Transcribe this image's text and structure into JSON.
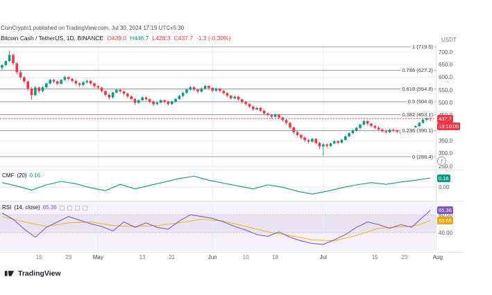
{
  "header": {
    "attribution": "CoinCrypto1 published on TradingView.com, Jul 30, 2024 17:19 UTC+5:30",
    "symbol": "Bitcoin Cash / TetherUS, 1D, BINANCE",
    "ohlc": {
      "o": "O439.0",
      "h": "H446.7",
      "l": "L428.3",
      "c": "C437.7",
      "change": "-1.3 (-0.30%)"
    },
    "quote_currency": "USDT"
  },
  "footer": {
    "brand": "TradingView"
  },
  "chart_data": {
    "type": "candlestick",
    "symbol": "Bitcoin Cash / TetherUS",
    "interval": "1D",
    "exchange": "BINANCE",
    "colors": {
      "up": "#089981",
      "down": "#f23645"
    },
    "fib_icon": "f",
    "price_axis": {
      "visible_range": [
        245,
        730
      ],
      "ticks": [
        700,
        650,
        600,
        550,
        500,
        450,
        400,
        350,
        300,
        250
      ]
    },
    "fib_levels": [
      {
        "label": "1 (719.5)",
        "value": 719.5
      },
      {
        "label": "0.786 (627.2)",
        "value": 627.2
      },
      {
        "label": "0.618 (554.8)",
        "value": 554.8
      },
      {
        "label": "0.5 (504.0)",
        "value": 504.0
      },
      {
        "label": "0.382 (453.1)",
        "value": 453.1
      },
      {
        "label": "0.236 (390.1)",
        "value": 390.1
      },
      {
        "label": "0 (288.4)",
        "value": 288.4
      }
    ],
    "last_price": {
      "value": 437.7,
      "label": "437.7",
      "countdown": "13:10:06"
    },
    "time_axis": [
      {
        "label": "15",
        "day": 10
      },
      {
        "label": "23",
        "day": 18
      },
      {
        "label": "May",
        "day": 26,
        "major": true
      },
      {
        "label": "13",
        "day": 38
      },
      {
        "label": "21",
        "day": 46
      },
      {
        "label": "Jun",
        "day": 57,
        "major": true
      },
      {
        "label": "10",
        "day": 66
      },
      {
        "label": "18",
        "day": 74
      },
      {
        "label": "Jul",
        "day": 87,
        "major": true
      },
      {
        "label": "15",
        "day": 101
      },
      {
        "label": "23",
        "day": 109
      },
      {
        "label": "Aug",
        "day": 118,
        "major": true
      }
    ],
    "candles": [
      [
        638,
        652,
        630,
        648
      ],
      [
        648,
        668,
        644,
        664
      ],
      [
        664,
        705,
        660,
        688
      ],
      [
        688,
        695,
        648,
        655
      ],
      [
        655,
        660,
        612,
        620
      ],
      [
        620,
        628,
        592,
        600
      ],
      [
        600,
        606,
        576,
        584
      ],
      [
        584,
        588,
        546,
        556
      ],
      [
        556,
        562,
        512,
        530
      ],
      [
        530,
        566,
        526,
        560
      ],
      [
        560,
        564,
        538,
        546
      ],
      [
        546,
        566,
        542,
        561
      ],
      [
        561,
        580,
        556,
        576
      ],
      [
        576,
        596,
        572,
        590
      ],
      [
        590,
        594,
        576,
        584
      ],
      [
        584,
        589,
        568,
        575
      ],
      [
        575,
        594,
        572,
        590
      ],
      [
        590,
        606,
        586,
        601
      ],
      [
        601,
        605,
        588,
        594
      ],
      [
        594,
        598,
        580,
        586
      ],
      [
        586,
        590,
        570,
        576
      ],
      [
        576,
        581,
        562,
        570
      ],
      [
        570,
        585,
        566,
        581
      ],
      [
        581,
        590,
        576,
        586
      ],
      [
        586,
        589,
        570,
        576
      ],
      [
        576,
        580,
        558,
        565
      ],
      [
        565,
        570,
        552,
        560
      ],
      [
        560,
        563,
        540,
        546
      ],
      [
        546,
        550,
        524,
        531
      ],
      [
        531,
        536,
        512,
        521
      ],
      [
        521,
        544,
        517,
        540
      ],
      [
        540,
        556,
        536,
        551
      ],
      [
        551,
        555,
        538,
        545
      ],
      [
        545,
        549,
        530,
        536
      ],
      [
        536,
        540,
        518,
        525
      ],
      [
        525,
        529,
        508,
        515
      ],
      [
        515,
        519,
        492,
        500
      ],
      [
        500,
        514,
        496,
        510
      ],
      [
        510,
        526,
        506,
        521
      ],
      [
        521,
        525,
        508,
        514
      ],
      [
        514,
        518,
        498,
        505
      ],
      [
        505,
        509,
        488,
        495
      ],
      [
        495,
        505,
        490,
        501
      ],
      [
        501,
        514,
        497,
        510
      ],
      [
        510,
        513,
        498,
        504
      ],
      [
        504,
        508,
        489,
        495
      ],
      [
        495,
        509,
        491,
        505
      ],
      [
        505,
        519,
        501,
        515
      ],
      [
        515,
        531,
        511,
        527
      ],
      [
        527,
        543,
        523,
        539
      ],
      [
        539,
        556,
        535,
        552
      ],
      [
        552,
        566,
        548,
        561
      ],
      [
        561,
        565,
        546,
        552
      ],
      [
        552,
        556,
        538,
        544
      ],
      [
        544,
        560,
        540,
        556
      ],
      [
        556,
        571,
        552,
        566
      ],
      [
        566,
        569,
        552,
        558
      ],
      [
        558,
        562,
        542,
        548
      ],
      [
        548,
        560,
        544,
        556
      ],
      [
        556,
        559,
        541,
        547
      ],
      [
        547,
        551,
        532,
        538
      ],
      [
        538,
        542,
        522,
        528
      ],
      [
        528,
        532,
        512,
        518
      ],
      [
        518,
        528,
        514,
        524
      ],
      [
        524,
        527,
        508,
        513
      ],
      [
        513,
        517,
        497,
        503
      ],
      [
        503,
        507,
        489,
        495
      ],
      [
        495,
        499,
        479,
        485
      ],
      [
        485,
        489,
        467,
        474
      ],
      [
        474,
        484,
        470,
        480
      ],
      [
        480,
        483,
        463,
        469
      ],
      [
        469,
        473,
        452,
        458
      ],
      [
        458,
        462,
        445,
        452
      ],
      [
        452,
        456,
        438,
        445
      ],
      [
        445,
        458,
        441,
        454
      ],
      [
        454,
        457,
        436,
        442
      ],
      [
        442,
        446,
        425,
        432
      ],
      [
        432,
        436,
        414,
        421
      ],
      [
        421,
        425,
        396,
        403
      ],
      [
        403,
        407,
        377,
        384
      ],
      [
        384,
        390,
        366,
        373
      ],
      [
        373,
        378,
        356,
        363
      ],
      [
        363,
        367,
        346,
        353
      ],
      [
        353,
        359,
        339,
        347
      ],
      [
        347,
        362,
        343,
        358
      ],
      [
        358,
        361,
        336,
        342
      ],
      [
        342,
        346,
        318,
        328
      ],
      [
        328,
        341,
        292,
        336
      ],
      [
        336,
        340,
        322,
        330
      ],
      [
        330,
        344,
        326,
        340
      ],
      [
        340,
        353,
        336,
        349
      ],
      [
        349,
        352,
        336,
        343
      ],
      [
        343,
        358,
        339,
        354
      ],
      [
        354,
        372,
        350,
        368
      ],
      [
        368,
        384,
        364,
        380
      ],
      [
        380,
        395,
        376,
        391
      ],
      [
        391,
        405,
        387,
        401
      ],
      [
        401,
        418,
        397,
        414
      ],
      [
        414,
        432,
        410,
        428
      ],
      [
        428,
        431,
        412,
        418
      ],
      [
        418,
        421,
        403,
        409
      ],
      [
        409,
        413,
        396,
        402
      ],
      [
        402,
        408,
        389,
        395
      ],
      [
        395,
        399,
        382,
        388
      ],
      [
        388,
        393,
        378,
        384
      ],
      [
        384,
        398,
        380,
        394
      ],
      [
        394,
        400,
        385,
        391
      ],
      [
        391,
        396,
        380,
        386
      ],
      [
        386,
        390,
        375,
        381
      ],
      [
        381,
        395,
        377,
        391
      ],
      [
        391,
        394,
        376,
        381
      ],
      [
        381,
        398,
        377,
        394
      ],
      [
        394,
        412,
        390,
        408
      ],
      [
        408,
        425,
        404,
        421
      ],
      [
        421,
        437,
        417,
        433
      ],
      [
        433,
        445,
        427,
        439
      ],
      [
        439,
        446.7,
        428.3,
        437.7
      ]
    ],
    "indicators": {
      "cmf": {
        "name": "CMF",
        "params": "(20)",
        "value": "0.16",
        "color": "#089981",
        "range": [
          -0.2,
          0.28
        ],
        "axis": {
          "badge": "0.16",
          "zero": "0.00"
        },
        "points": [
          [
            0,
            0.08
          ],
          [
            4,
            0.02
          ],
          [
            8,
            -0.05
          ],
          [
            12,
            0.04
          ],
          [
            16,
            0.1
          ],
          [
            20,
            0.06
          ],
          [
            24,
            -0.01
          ],
          [
            28,
            -0.06
          ],
          [
            32,
            0.05
          ],
          [
            36,
            -0.03
          ],
          [
            40,
            0.03
          ],
          [
            44,
            0.09
          ],
          [
            48,
            0.15
          ],
          [
            52,
            0.19
          ],
          [
            56,
            0.12
          ],
          [
            60,
            0.07
          ],
          [
            64,
            0.02
          ],
          [
            68,
            -0.03
          ],
          [
            72,
            0.04
          ],
          [
            76,
            0.0
          ],
          [
            80,
            -0.07
          ],
          [
            84,
            -0.12
          ],
          [
            88,
            -0.07
          ],
          [
            92,
            -0.01
          ],
          [
            96,
            0.04
          ],
          [
            100,
            0.08
          ],
          [
            104,
            0.05
          ],
          [
            108,
            0.09
          ],
          [
            112,
            0.12
          ],
          [
            116,
            0.16
          ]
        ]
      },
      "rsi": {
        "name": "RSI",
        "params": "(14, close)",
        "value": "65.36",
        "line_color": "#7e57c2",
        "ma_color": "#f0b40a",
        "bg": "rgba(126,87,194,0.08)",
        "band": "rgba(126,87,194,0.09)",
        "range": [
          20,
          74
        ],
        "levels": [
          60,
          40
        ],
        "axis": {
          "value_badge": "65.36",
          "upper": "60.00",
          "ma_badge": "53.66",
          "lower": "40.00"
        },
        "points": [
          [
            0,
            62
          ],
          [
            3,
            55
          ],
          [
            6,
            44
          ],
          [
            9,
            35
          ],
          [
            12,
            46
          ],
          [
            15,
            52
          ],
          [
            18,
            58
          ],
          [
            21,
            54
          ],
          [
            24,
            50
          ],
          [
            27,
            47
          ],
          [
            30,
            42
          ],
          [
            33,
            52
          ],
          [
            36,
            46
          ],
          [
            39,
            51
          ],
          [
            42,
            46
          ],
          [
            45,
            44
          ],
          [
            48,
            53
          ],
          [
            51,
            60
          ],
          [
            54,
            58
          ],
          [
            57,
            56
          ],
          [
            60,
            52
          ],
          [
            63,
            47
          ],
          [
            66,
            43
          ],
          [
            69,
            38
          ],
          [
            72,
            36
          ],
          [
            75,
            41
          ],
          [
            78,
            35
          ],
          [
            81,
            31
          ],
          [
            84,
            28
          ],
          [
            87,
            27
          ],
          [
            90,
            32
          ],
          [
            93,
            38
          ],
          [
            96,
            46
          ],
          [
            99,
            52
          ],
          [
            102,
            49
          ],
          [
            105,
            45
          ],
          [
            108,
            49
          ],
          [
            111,
            46
          ],
          [
            113,
            54
          ],
          [
            115,
            61
          ],
          [
            116,
            65.36
          ]
        ],
        "ma_points": [
          [
            0,
            58
          ],
          [
            6,
            52
          ],
          [
            12,
            47
          ],
          [
            18,
            51
          ],
          [
            24,
            52
          ],
          [
            30,
            48
          ],
          [
            36,
            47
          ],
          [
            42,
            48
          ],
          [
            48,
            51
          ],
          [
            54,
            55
          ],
          [
            60,
            53
          ],
          [
            66,
            47
          ],
          [
            72,
            41
          ],
          [
            78,
            37
          ],
          [
            84,
            32
          ],
          [
            90,
            31
          ],
          [
            96,
            37
          ],
          [
            102,
            45
          ],
          [
            106,
            46
          ],
          [
            110,
            47
          ],
          [
            113,
            49
          ],
          [
            116,
            53.66
          ]
        ]
      }
    }
  }
}
